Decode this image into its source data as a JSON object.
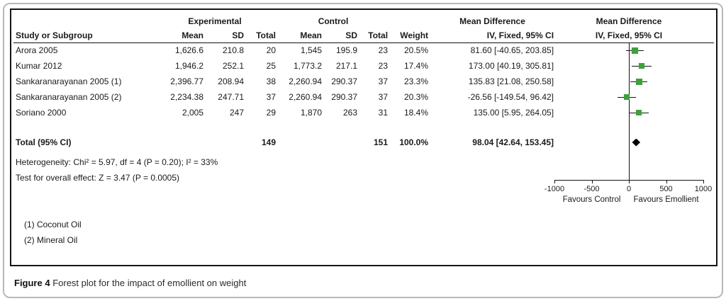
{
  "figure": {
    "caption_label": "Figure 4",
    "caption_text": "Forest plot for the impact of emollient on weight"
  },
  "header": {
    "study": "Study or Subgroup",
    "experimental": "Experimental",
    "control": "Control",
    "mean": "Mean",
    "sd": "SD",
    "total": "Total",
    "weight": "Weight",
    "md_label": "Mean Difference",
    "ci_label": "IV, Fixed, 95% CI"
  },
  "chart_data": {
    "type": "forest",
    "effect_measure": "Mean Difference, IV, Fixed, 95% CI",
    "xlim": [
      -1000,
      1000
    ],
    "ticks": [
      -1000,
      -500,
      0,
      500,
      1000
    ],
    "favours_left": "Favours Control",
    "favours_right": "Favours Emollient",
    "marker_color": "#3aa33a",
    "diamond_color": "#000000",
    "studies": [
      {
        "name": "Arora 2005",
        "exp_mean": "1,626.6",
        "exp_sd": "210.8",
        "exp_total": "20",
        "ctl_mean": "1,545",
        "ctl_sd": "195.9",
        "ctl_total": "23",
        "weight": "20.5%",
        "weight_pct": 20.5,
        "md": 81.6,
        "ci_low": -40.65,
        "ci_high": 203.85,
        "ci_text": "81.60 [-40.65, 203.85]"
      },
      {
        "name": "Kumar 2012",
        "exp_mean": "1,946.2",
        "exp_sd": "252.1",
        "exp_total": "25",
        "ctl_mean": "1,773.2",
        "ctl_sd": "217.1",
        "ctl_total": "23",
        "weight": "17.4%",
        "weight_pct": 17.4,
        "md": 173.0,
        "ci_low": 40.19,
        "ci_high": 305.81,
        "ci_text": "173.00 [40.19, 305.81]"
      },
      {
        "name": "Sankaranarayanan 2005 (1)",
        "exp_mean": "2,396.77",
        "exp_sd": "208.94",
        "exp_total": "38",
        "ctl_mean": "2,260.94",
        "ctl_sd": "290.37",
        "ctl_total": "37",
        "weight": "23.3%",
        "weight_pct": 23.3,
        "md": 135.83,
        "ci_low": 21.08,
        "ci_high": 250.58,
        "ci_text": "135.83 [21.08, 250.58]"
      },
      {
        "name": "Sankaranarayanan 2005 (2)",
        "exp_mean": "2,234.38",
        "exp_sd": "247.71",
        "exp_total": "37",
        "ctl_mean": "2,260.94",
        "ctl_sd": "290.37",
        "ctl_total": "37",
        "weight": "20.3%",
        "weight_pct": 20.3,
        "md": -26.56,
        "ci_low": -149.54,
        "ci_high": 96.42,
        "ci_text": "-26.56 [-149.54, 96.42]"
      },
      {
        "name": "Soriano 2000",
        "exp_mean": "2,005",
        "exp_sd": "247",
        "exp_total": "29",
        "ctl_mean": "1,870",
        "ctl_sd": "263",
        "ctl_total": "31",
        "weight": "18.4%",
        "weight_pct": 18.4,
        "md": 135.0,
        "ci_low": 5.95,
        "ci_high": 264.05,
        "ci_text": "135.00 [5.95, 264.05]"
      }
    ],
    "total": {
      "label": "Total (95% CI)",
      "exp_total": "149",
      "ctl_total": "151",
      "weight": "100.0%",
      "md": 98.04,
      "ci_low": 42.64,
      "ci_high": 153.45,
      "ci_text": "98.04 [42.64, 153.45]"
    },
    "heterogeneity": "Heterogeneity: Chi² = 5.97, df = 4 (P = 0.20); I² = 33%",
    "overall_effect": "Test for overall effect: Z = 3.47 (P = 0.0005)",
    "footnotes": [
      "(1) Coconut Oil",
      "(2) Mineral Oil"
    ]
  }
}
